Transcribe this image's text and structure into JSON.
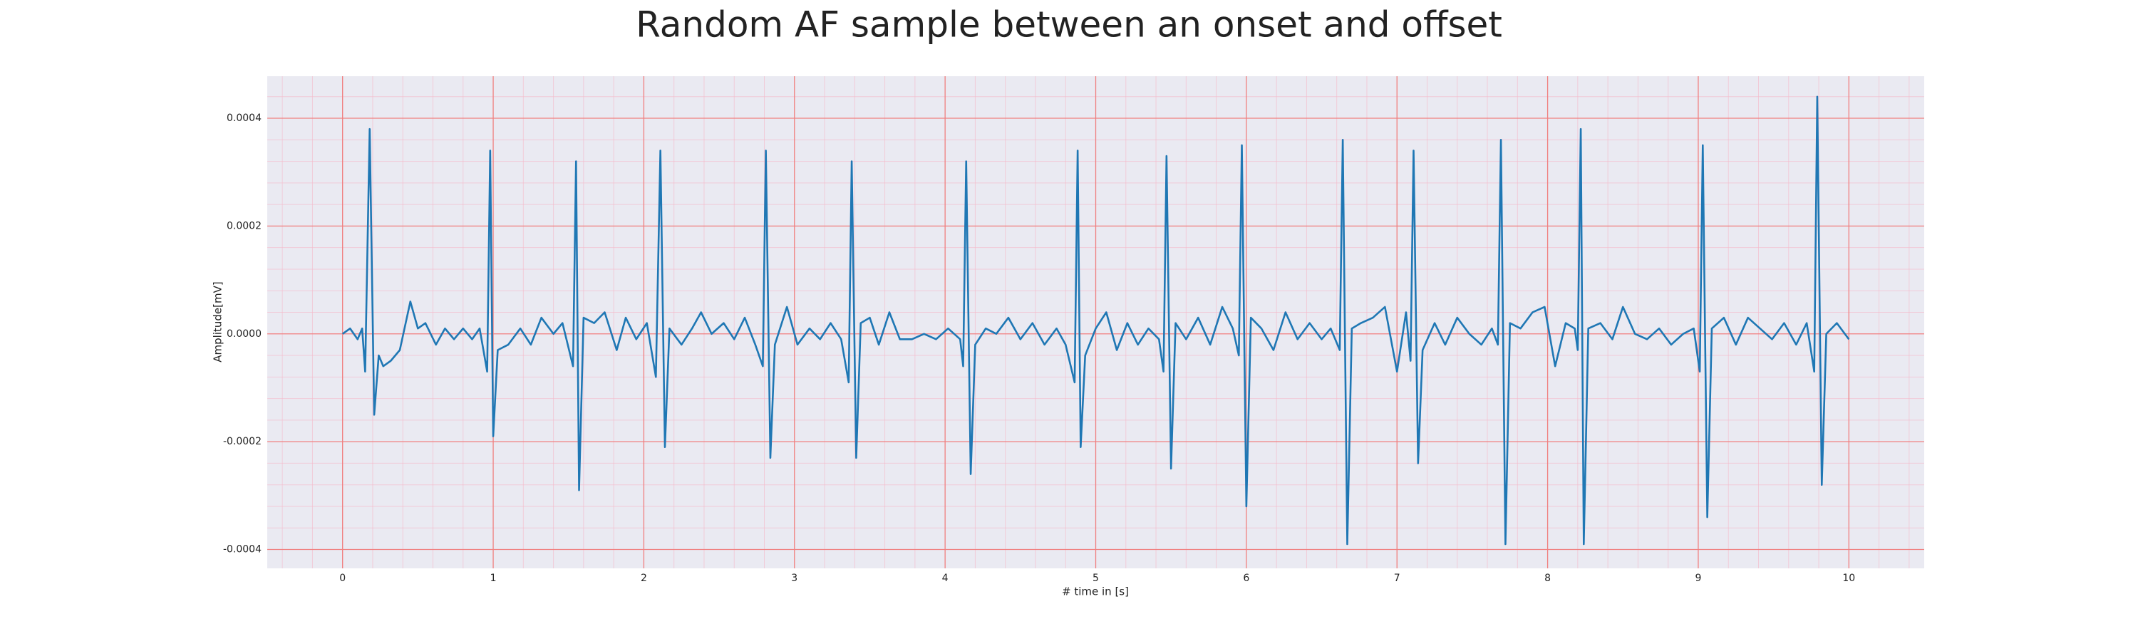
{
  "chart_data": {
    "type": "line",
    "title": "Random AF sample between an onset and offset",
    "xlabel": "# time in [s]",
    "ylabel": "Amplitude[mV]",
    "xlim": [
      -0.5,
      10.5
    ],
    "ylim": [
      -0.000435,
      0.000478
    ],
    "xticks": [
      0,
      1,
      2,
      3,
      4,
      5,
      6,
      7,
      8,
      9,
      10
    ],
    "yticks": [
      -0.0004,
      -0.0002,
      {
        "value": 0,
        "label": "0.0000"
      },
      0.0002,
      0.0004
    ],
    "grid": true,
    "minor_grid": true,
    "series": [
      {
        "color": "#1f77b4",
        "x": [
          0.0,
          0.05,
          0.1,
          0.13,
          0.15,
          0.18,
          0.21,
          0.24,
          0.27,
          0.32,
          0.38,
          0.45,
          0.5,
          0.55,
          0.62,
          0.68,
          0.74,
          0.8,
          0.86,
          0.91,
          0.96,
          0.98,
          1.0,
          1.03,
          1.1,
          1.18,
          1.25,
          1.32,
          1.4,
          1.46,
          1.53,
          1.55,
          1.57,
          1.6,
          1.67,
          1.74,
          1.82,
          1.88,
          1.95,
          2.02,
          2.08,
          2.11,
          2.14,
          2.17,
          2.25,
          2.32,
          2.38,
          2.45,
          2.53,
          2.6,
          2.67,
          2.74,
          2.79,
          2.81,
          2.84,
          2.87,
          2.95,
          3.02,
          3.1,
          3.17,
          3.24,
          3.31,
          3.36,
          3.38,
          3.41,
          3.44,
          3.5,
          3.56,
          3.63,
          3.7,
          3.78,
          3.86,
          3.94,
          4.02,
          4.1,
          4.12,
          4.14,
          4.17,
          4.2,
          4.27,
          4.34,
          4.42,
          4.5,
          4.58,
          4.66,
          4.74,
          4.8,
          4.86,
          4.88,
          4.9,
          4.93,
          5.0,
          5.07,
          5.14,
          5.21,
          5.28,
          5.35,
          5.42,
          5.45,
          5.47,
          5.5,
          5.53,
          5.6,
          5.68,
          5.76,
          5.84,
          5.91,
          5.95,
          5.97,
          6.0,
          6.03,
          6.1,
          6.18,
          6.26,
          6.34,
          6.42,
          6.5,
          6.56,
          6.62,
          6.64,
          6.67,
          6.7,
          6.76,
          6.84,
          6.92,
          7.0,
          7.06,
          7.09,
          7.11,
          7.14,
          7.17,
          7.25,
          7.32,
          7.4,
          7.48,
          7.56,
          7.63,
          7.67,
          7.69,
          7.72,
          7.75,
          7.82,
          7.9,
          7.98,
          8.05,
          8.12,
          8.18,
          8.2,
          8.22,
          8.24,
          8.27,
          8.35,
          8.43,
          8.5,
          8.58,
          8.66,
          8.74,
          8.82,
          8.9,
          8.97,
          9.01,
          9.03,
          9.06,
          9.09,
          9.17,
          9.25,
          9.33,
          9.41,
          9.49,
          9.57,
          9.65,
          9.72,
          9.77,
          9.79,
          9.82,
          9.85,
          9.92,
          10.0
        ],
        "values": [
          0.0,
          1e-05,
          -1e-05,
          1e-05,
          -7e-05,
          0.00038,
          -0.00015,
          -4e-05,
          -6e-05,
          -5e-05,
          -3e-05,
          6e-05,
          1e-05,
          2e-05,
          -2e-05,
          1e-05,
          -1e-05,
          1e-05,
          -1e-05,
          1e-05,
          -7e-05,
          0.00034,
          -0.00019,
          -3e-05,
          -2e-05,
          1e-05,
          -2e-05,
          3e-05,
          0.0,
          2e-05,
          -6e-05,
          0.00032,
          -0.00029,
          3e-05,
          2e-05,
          4e-05,
          -3e-05,
          3e-05,
          -1e-05,
          2e-05,
          -8e-05,
          0.00034,
          -0.00021,
          1e-05,
          -2e-05,
          1e-05,
          4e-05,
          0.0,
          2e-05,
          -1e-05,
          3e-05,
          -2e-05,
          -6e-05,
          0.00034,
          -0.00023,
          -2e-05,
          5e-05,
          -2e-05,
          1e-05,
          -1e-05,
          2e-05,
          -1e-05,
          -9e-05,
          0.00032,
          -0.00023,
          2e-05,
          3e-05,
          -2e-05,
          4e-05,
          -1e-05,
          -1e-05,
          0.0,
          -1e-05,
          1e-05,
          -1e-05,
          -6e-05,
          0.00032,
          -0.00026,
          -2e-05,
          1e-05,
          0.0,
          3e-05,
          -1e-05,
          2e-05,
          -2e-05,
          1e-05,
          -2e-05,
          -9e-05,
          0.00034,
          -0.00021,
          -4e-05,
          1e-05,
          4e-05,
          -3e-05,
          2e-05,
          -2e-05,
          1e-05,
          -1e-05,
          -7e-05,
          0.00033,
          -0.00025,
          2e-05,
          -1e-05,
          3e-05,
          -2e-05,
          5e-05,
          1e-05,
          -4e-05,
          0.00035,
          -0.00032,
          3e-05,
          1e-05,
          -3e-05,
          4e-05,
          -1e-05,
          2e-05,
          -1e-05,
          1e-05,
          -3e-05,
          0.00036,
          -0.00039,
          1e-05,
          2e-05,
          3e-05,
          5e-05,
          -7e-05,
          4e-05,
          -5e-05,
          0.00034,
          -0.00024,
          -3e-05,
          2e-05,
          -2e-05,
          3e-05,
          0.0,
          -2e-05,
          1e-05,
          -2e-05,
          0.00036,
          -0.00039,
          2e-05,
          1e-05,
          4e-05,
          5e-05,
          -6e-05,
          2e-05,
          1e-05,
          -3e-05,
          0.00038,
          -0.00039,
          1e-05,
          2e-05,
          -1e-05,
          5e-05,
          0.0,
          -1e-05,
          1e-05,
          -2e-05,
          0.0,
          1e-05,
          -7e-05,
          0.00035,
          -0.00034,
          1e-05,
          3e-05,
          -2e-05,
          3e-05,
          1e-05,
          -1e-05,
          2e-05,
          -2e-05,
          2e-05,
          -7e-05,
          0.00044,
          -0.00028,
          0.0,
          2e-05,
          -1e-05
        ]
      }
    ]
  }
}
